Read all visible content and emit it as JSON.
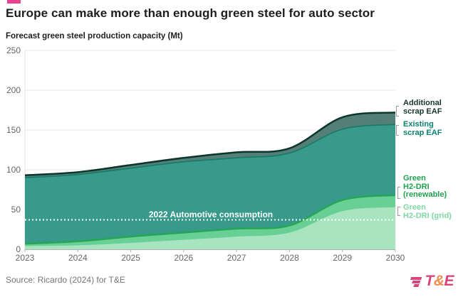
{
  "header": {
    "title": "Europe can make more than enough green steel for auto sector",
    "accent_color": "#e8418d"
  },
  "chart": {
    "subtitle": "Forecast green steel production capacity (Mt)"
  },
  "chart_data": {
    "type": "area",
    "stacked": true,
    "title": "Forecast green steel production capacity (Mt)",
    "x": [
      2023,
      2024,
      2025,
      2026,
      2027,
      2028,
      2029,
      2030
    ],
    "series": [
      {
        "name": "Green H2-DRI (grid)",
        "values": [
          4,
          5,
          8,
          12,
          16,
          21,
          48,
          53
        ],
        "fill": "#a7e4bf",
        "stroke": "none",
        "stroke_width": 0
      },
      {
        "name": "Green H2-DRI (renewable)",
        "values": [
          3,
          5,
          8,
          9,
          10,
          9,
          14,
          15
        ],
        "fill": "#68cf95",
        "stroke": "#27a556",
        "stroke_width": 2.5
      },
      {
        "name": "Existing scrap EAF",
        "values": [
          83,
          84,
          86,
          89,
          89,
          91,
          89,
          89
        ],
        "fill": "#389a8a",
        "stroke": "#177a68",
        "stroke_width": 1.6
      },
      {
        "name": "Additional scrap EAF",
        "values": [
          3,
          3,
          4,
          5,
          7,
          6,
          15,
          15
        ],
        "fill": "#547f77",
        "stroke": "#0c352b",
        "stroke_width": 2.5
      }
    ],
    "stacked_totals": [
      93,
      97,
      106,
      115,
      122,
      127,
      166,
      172
    ],
    "reference_line": {
      "label": "2022 Automotive consumption",
      "value": 37,
      "color": "#ffffff",
      "style": "dotted"
    },
    "yticks": [
      0,
      50,
      100,
      150,
      200,
      250
    ],
    "ylim": [
      0,
      250
    ],
    "xlim": [
      2023,
      2030
    ],
    "grid": "horizontal",
    "legend_position": "right"
  },
  "legend": {
    "items": [
      {
        "id": "additional-scrap-eaf",
        "label": "Additional\nscrap EAF",
        "color": "#17352c"
      },
      {
        "id": "existing-scrap-eaf",
        "label": "Existing\nscrap EAF",
        "color": "#0b8271"
      },
      {
        "id": "green-h2-dri-renewable",
        "label": "Green\nH2-DRI\n(renewable)",
        "color": "#1ea24e"
      },
      {
        "id": "green-h2-dri-grid",
        "label": "Green\nH2-DRI (grid)",
        "color": "#7fd8a2"
      }
    ]
  },
  "footer": {
    "source": "Source: Ricardo (2024) for T&E",
    "logo": {
      "t": "T",
      "amp": "&",
      "e": "E",
      "te_color": "#d6457c",
      "amp_color": "#ef8a50"
    }
  }
}
